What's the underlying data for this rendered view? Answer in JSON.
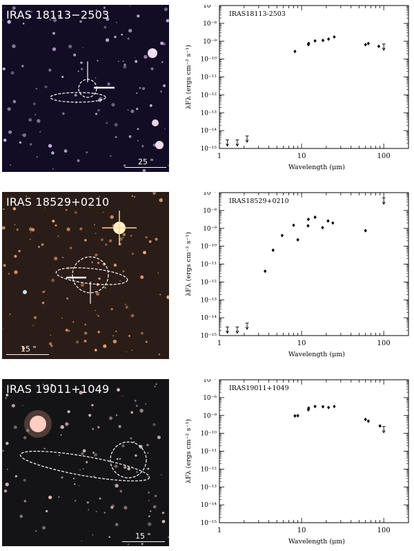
{
  "panels": [
    {
      "image": {
        "title": "IRAS 18113−2503",
        "scale_label": "25 \""
      },
      "chart_data": {
        "type": "scatter",
        "title": "IRAS18113-2503",
        "xlabel": "Wavelength (μm)",
        "ylabel": "λFλ (ergs cm⁻² s⁻¹)",
        "xscale": "log",
        "yscale": "log",
        "xlim": [
          1,
          200
        ],
        "ylim": [
          1e-15,
          1e-07
        ],
        "x_ticks": [
          "1",
          "10",
          "100"
        ],
        "y_ticks": [
          "10⁻¹⁵",
          "10⁻¹⁴",
          "10⁻¹³",
          "10⁻¹²",
          "10⁻¹¹",
          "10⁻¹⁰",
          "10⁻⁹",
          "10⁻⁸",
          "10⁻⁷"
        ],
        "series": [
          {
            "kind": "detections",
            "points": [
              [
                8.3,
                2.7e-10
              ],
              [
                12.1,
                6.5e-10
              ],
              [
                12.2,
                7.6e-10
              ],
              [
                14.6,
                1.05e-09
              ],
              [
                18.2,
                1.12e-09
              ],
              [
                21.3,
                1.32e-09
              ],
              [
                25,
                1.75e-09
              ],
              [
                60,
                6.5e-10
              ],
              [
                65,
                7.5e-10
              ],
              [
                87,
                5.2e-10
              ]
            ]
          },
          {
            "kind": "upper_limits",
            "points": [
              [
                1.25,
                3e-15
              ],
              [
                1.65,
                3e-15
              ],
              [
                2.17,
                5e-15
              ],
              [
                100,
                7e-10
              ]
            ]
          }
        ]
      }
    },
    {
      "image": {
        "title": "IRAS 18529+0210",
        "scale_label": "15 \""
      },
      "chart_data": {
        "type": "scatter",
        "title": "IRAS18529+0210",
        "xlabel": "Wavelength (μm)",
        "ylabel": "λFλ (ergs cm⁻² s⁻¹)",
        "xscale": "log",
        "yscale": "log",
        "xlim": [
          1,
          200
        ],
        "ylim": [
          1e-15,
          1e-07
        ],
        "x_ticks": [
          "1",
          "10",
          "100"
        ],
        "y_ticks": [
          "10⁻¹⁵",
          "10⁻¹⁴",
          "10⁻¹³",
          "10⁻¹²",
          "10⁻¹¹",
          "10⁻¹⁰",
          "10⁻⁹",
          "10⁻⁸",
          "10⁻⁷"
        ],
        "series": [
          {
            "kind": "detections",
            "points": [
              [
                3.6,
                4e-12
              ],
              [
                4.5,
                6e-11
              ],
              [
                5.8,
                4e-10
              ],
              [
                8.0,
                1.5e-09
              ],
              [
                9.0,
                2.3e-10
              ],
              [
                12,
                1.4e-09
              ],
              [
                12.1,
                3.2e-09
              ],
              [
                14.6,
                4.2e-09
              ],
              [
                18,
                1.1e-09
              ],
              [
                21,
                2.6e-09
              ],
              [
                24,
                2e-09
              ],
              [
                60,
                7.5e-10
              ]
            ]
          },
          {
            "kind": "upper_limits",
            "points": [
              [
                1.25,
                3e-15
              ],
              [
                1.65,
                3e-15
              ],
              [
                2.17,
                5e-15
              ],
              [
                100,
                5e-08
              ]
            ]
          }
        ]
      }
    },
    {
      "image": {
        "title": "IRAS 19011+1049",
        "scale_label": "15 \""
      },
      "chart_data": {
        "type": "scatter",
        "title": "IRAS19011+1049",
        "xlabel": "Wavelength (μm)",
        "ylabel": "λFλ (ergs cm⁻² s⁻¹)",
        "xscale": "log",
        "yscale": "log",
        "xlim": [
          1,
          200
        ],
        "ylim": [
          1e-15,
          1e-07
        ],
        "x_ticks": [
          "1",
          "10",
          "100"
        ],
        "y_ticks": [
          "10⁻¹⁵",
          "10⁻¹⁴",
          "10⁻¹³",
          "10⁻¹²",
          "10⁻¹¹",
          "10⁻¹⁰",
          "10⁻⁹",
          "10⁻⁸",
          "10⁻⁷"
        ],
        "series": [
          {
            "kind": "detections",
            "points": [
              [
                8.3,
                9.5e-10
              ],
              [
                9.0,
                9.8e-10
              ],
              [
                12.1,
                2.1e-09
              ],
              [
                12.2,
                2.6e-09
              ],
              [
                14.6,
                3.2e-09
              ],
              [
                18.2,
                3.1e-09
              ],
              [
                21.3,
                2.8e-09
              ],
              [
                25,
                3.2e-09
              ],
              [
                60,
                6e-10
              ],
              [
                65,
                4.8e-10
              ],
              [
                90,
                2.6e-10
              ]
            ]
          },
          {
            "kind": "upper_limits",
            "points": [
              [
                100,
                2.4e-10
              ]
            ]
          }
        ]
      }
    }
  ]
}
